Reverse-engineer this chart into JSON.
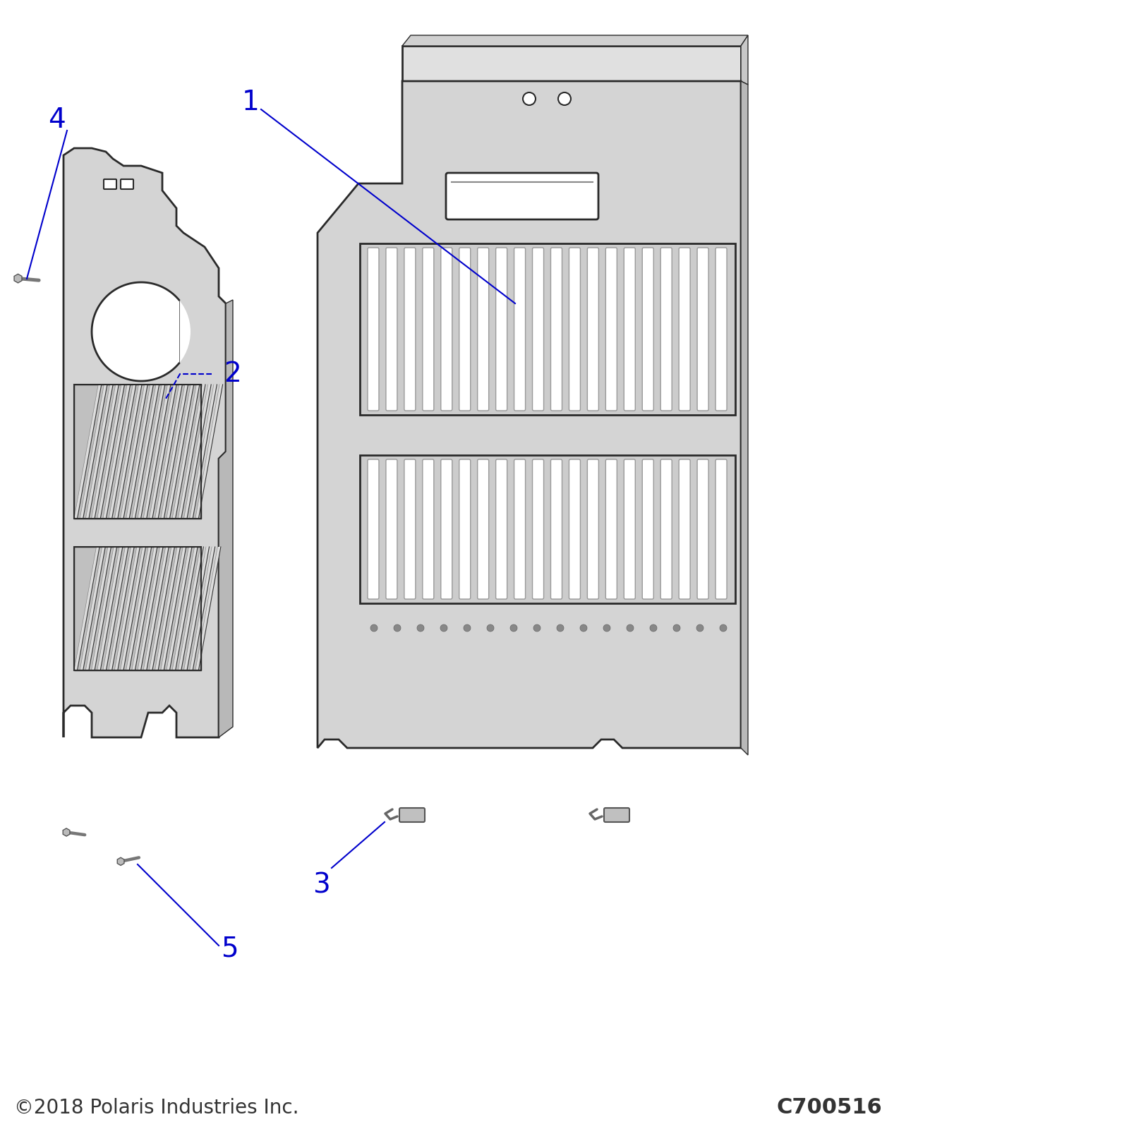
{
  "bg_color": "#ffffff",
  "line_color": "#2a2a2a",
  "fill_color": "#d4d4d4",
  "fill_color_dark": "#b8b8b8",
  "fill_color_light": "#e8e8e8",
  "blue_color": "#0000cc",
  "footer_left": "©2018 Polaris Industries Inc.",
  "footer_right": "C700516"
}
